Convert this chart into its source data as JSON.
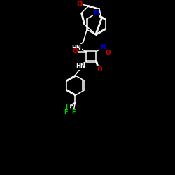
{
  "background_color": "#000000",
  "bond_color": "#ffffff",
  "atom_colors": {
    "N": "#0000cc",
    "O": "#cc0000",
    "F": "#00cc00",
    "C": "#ffffff",
    "H": "#ffffff"
  },
  "figsize": [
    2.5,
    2.5
  ],
  "dpi": 100,
  "xlim": [
    0,
    10
  ],
  "ylim": [
    0,
    10
  ]
}
